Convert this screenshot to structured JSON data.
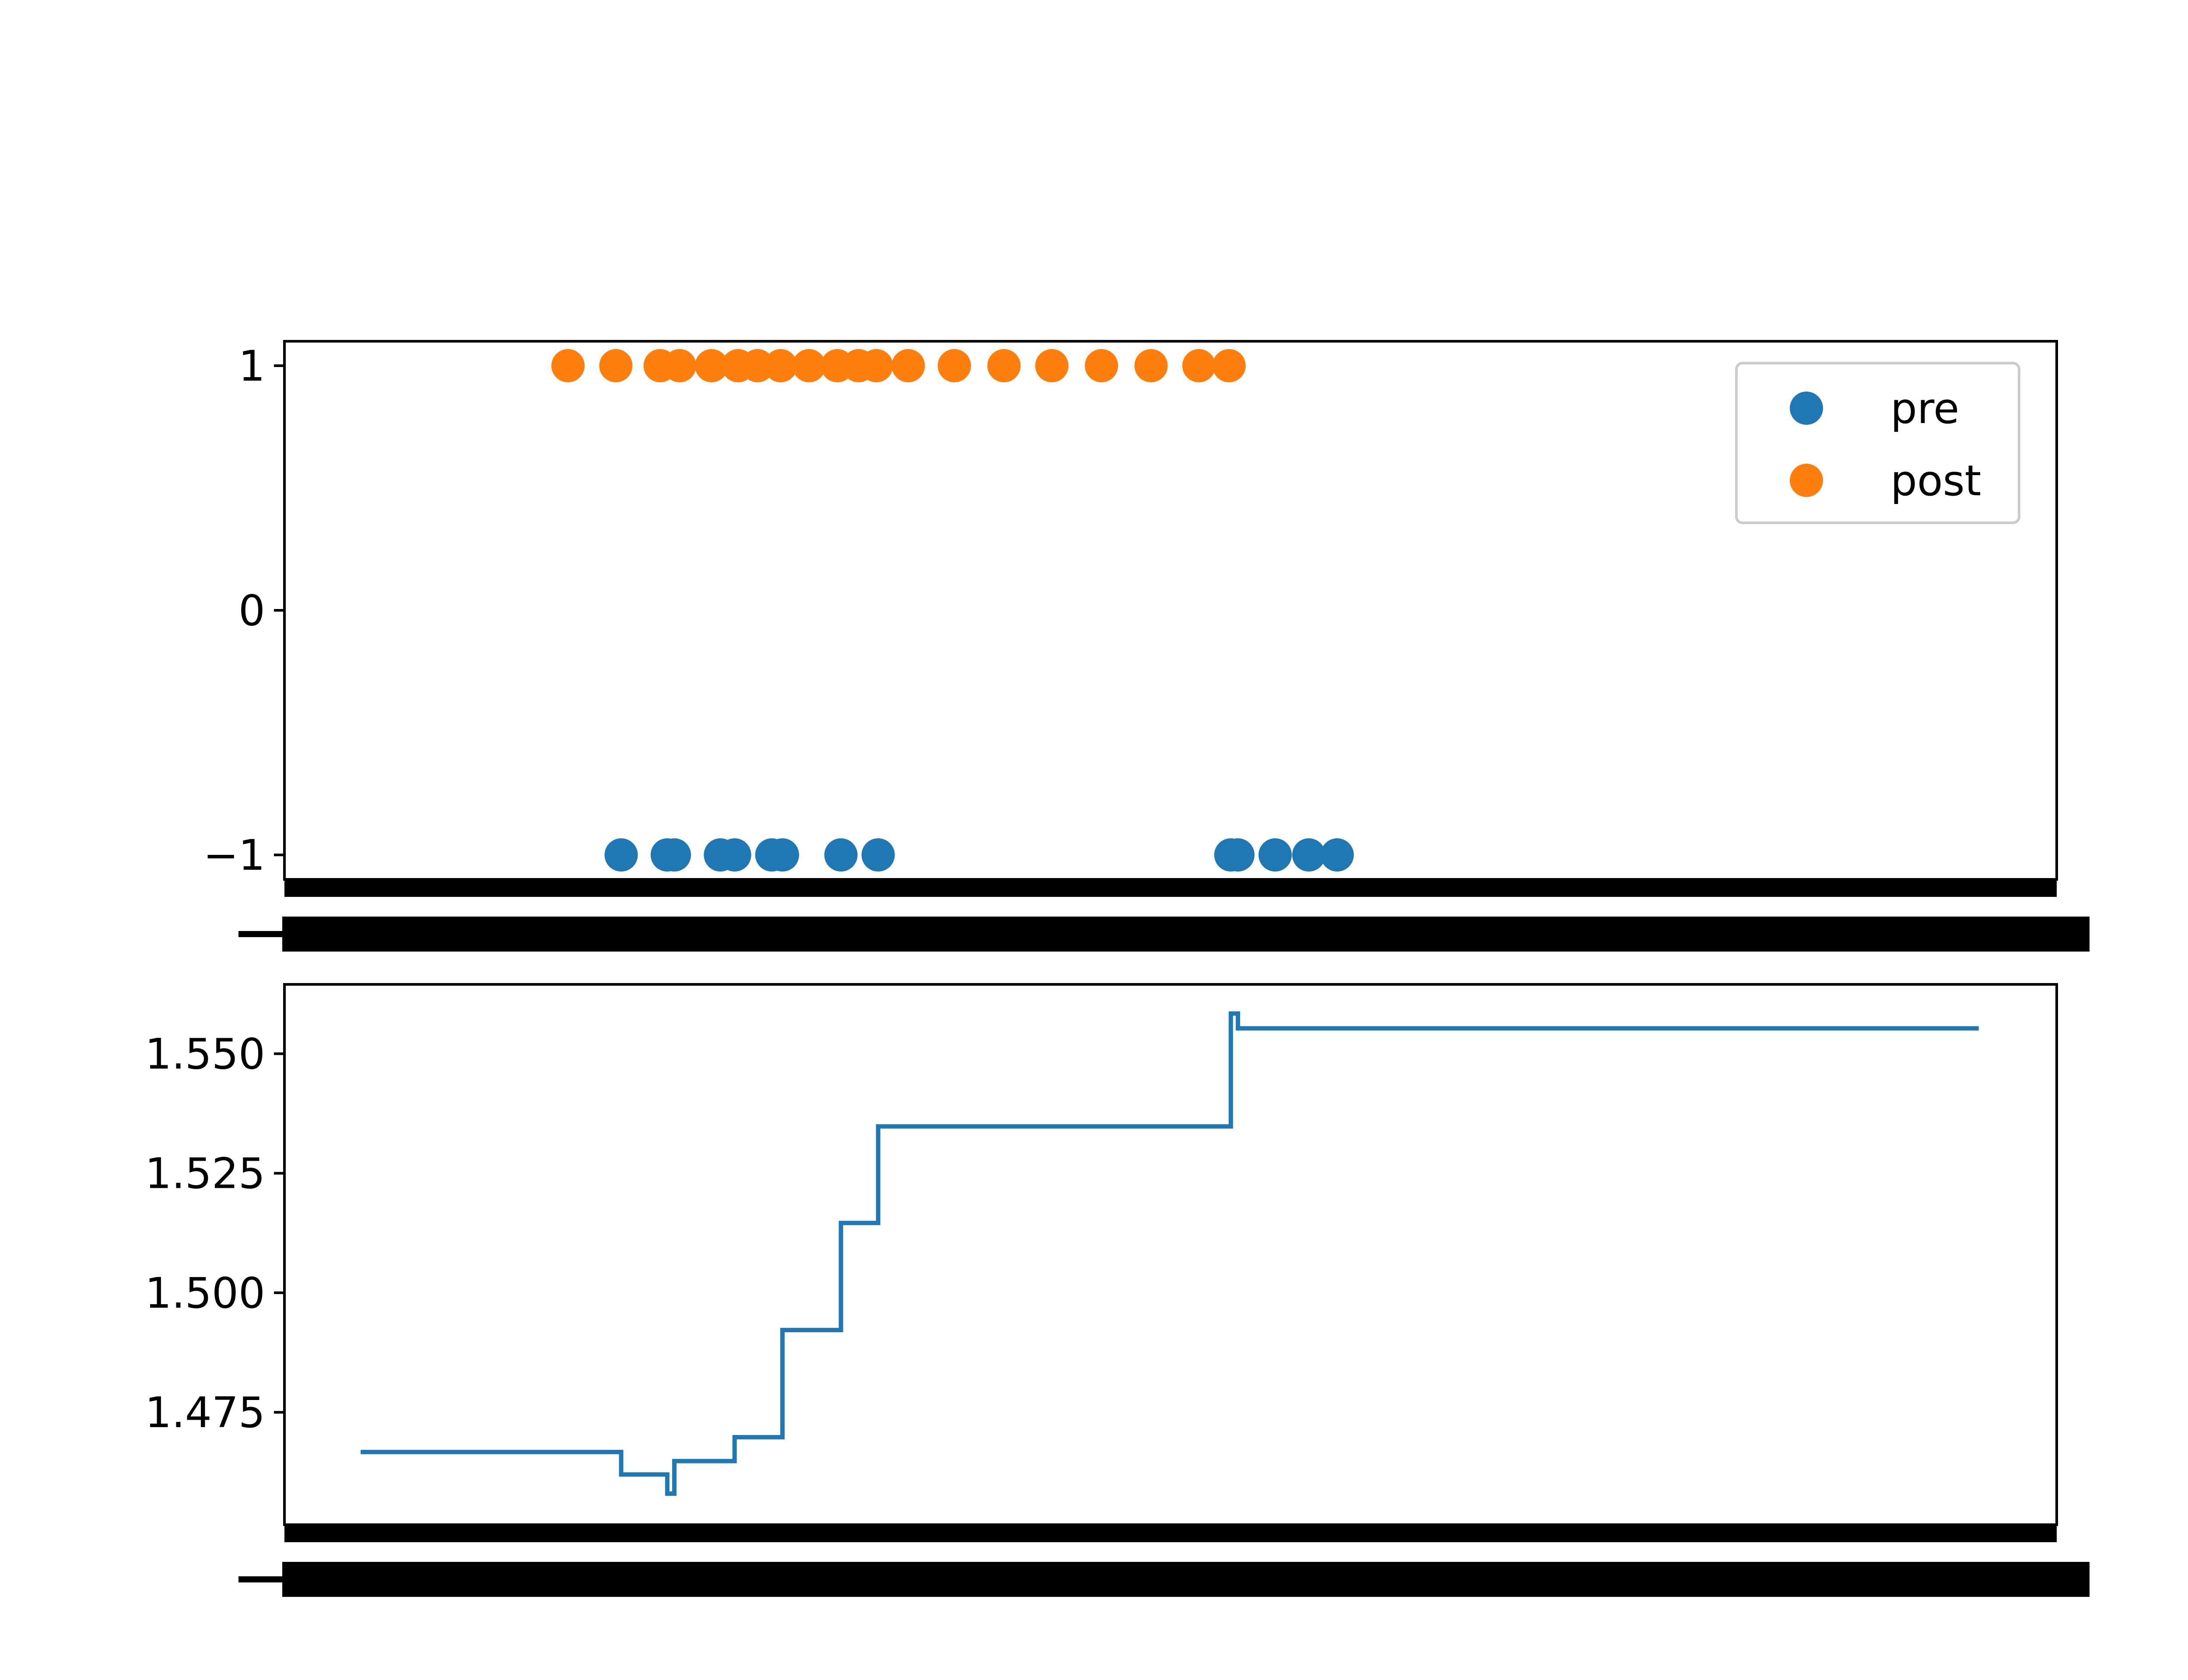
{
  "chart_data": [
    {
      "type": "scatter",
      "title": "",
      "xlabel": "",
      "ylabel": "",
      "xlim": [
        0,
        100
      ],
      "ylim": [
        -1.1,
        1.1
      ],
      "yticks": [
        {
          "value": -1,
          "label": "−1"
        },
        {
          "value": 0,
          "label": "0"
        },
        {
          "value": 1,
          "label": "1"
        }
      ],
      "x_tick_labels_note": "overlapping, illegible",
      "legend": {
        "placement": "top-right",
        "entries": [
          "pre",
          "post"
        ]
      },
      "series": [
        {
          "name": "pre",
          "color": "#1f77b4",
          "y": -1,
          "x": [
            19.0,
            21.6,
            22.0,
            24.6,
            25.4,
            27.5,
            28.1,
            31.4,
            33.5,
            53.4,
            53.8,
            55.9,
            57.8,
            59.4
          ]
        },
        {
          "name": "post",
          "color": "#ff7f0e",
          "y": 1,
          "x": [
            16.0,
            18.7,
            21.2,
            22.3,
            24.1,
            25.6,
            26.7,
            28.0,
            29.6,
            31.2,
            32.4,
            33.4,
            35.2,
            37.8,
            40.6,
            43.3,
            46.1,
            48.9,
            51.6,
            53.3
          ]
        }
      ]
    },
    {
      "type": "line",
      "drawstyle": "steps-post",
      "title": "",
      "xlabel": "",
      "ylabel": "",
      "xlim": [
        0,
        100
      ],
      "ylim": [
        1.4515,
        1.5645
      ],
      "yticks": [
        {
          "value": 1.475,
          "label": "1.475"
        },
        {
          "value": 1.5,
          "label": "1.500"
        },
        {
          "value": 1.525,
          "label": "1.525"
        },
        {
          "value": 1.55,
          "label": "1.550"
        }
      ],
      "x_tick_labels_note": "overlapping, illegible",
      "series": [
        {
          "color": "#1f77b4",
          "points": [
            {
              "x": 4.3,
              "y": 1.4667
            },
            {
              "x": 19.0,
              "y": 1.462
            },
            {
              "x": 21.6,
              "y": 1.458
            },
            {
              "x": 22.0,
              "y": 1.4648
            },
            {
              "x": 25.4,
              "y": 1.4698
            },
            {
              "x": 28.1,
              "y": 1.4922
            },
            {
              "x": 31.4,
              "y": 1.5146
            },
            {
              "x": 33.5,
              "y": 1.5348
            },
            {
              "x": 53.4,
              "y": 1.5584
            },
            {
              "x": 53.8,
              "y": 1.5553
            },
            {
              "x": 95.6,
              "y": 1.5553
            }
          ]
        }
      ]
    }
  ],
  "colors": {
    "pre": "#1f77b4",
    "post": "#ff7f0e",
    "axes": "#000000",
    "legend_frame": "#cccccc"
  }
}
